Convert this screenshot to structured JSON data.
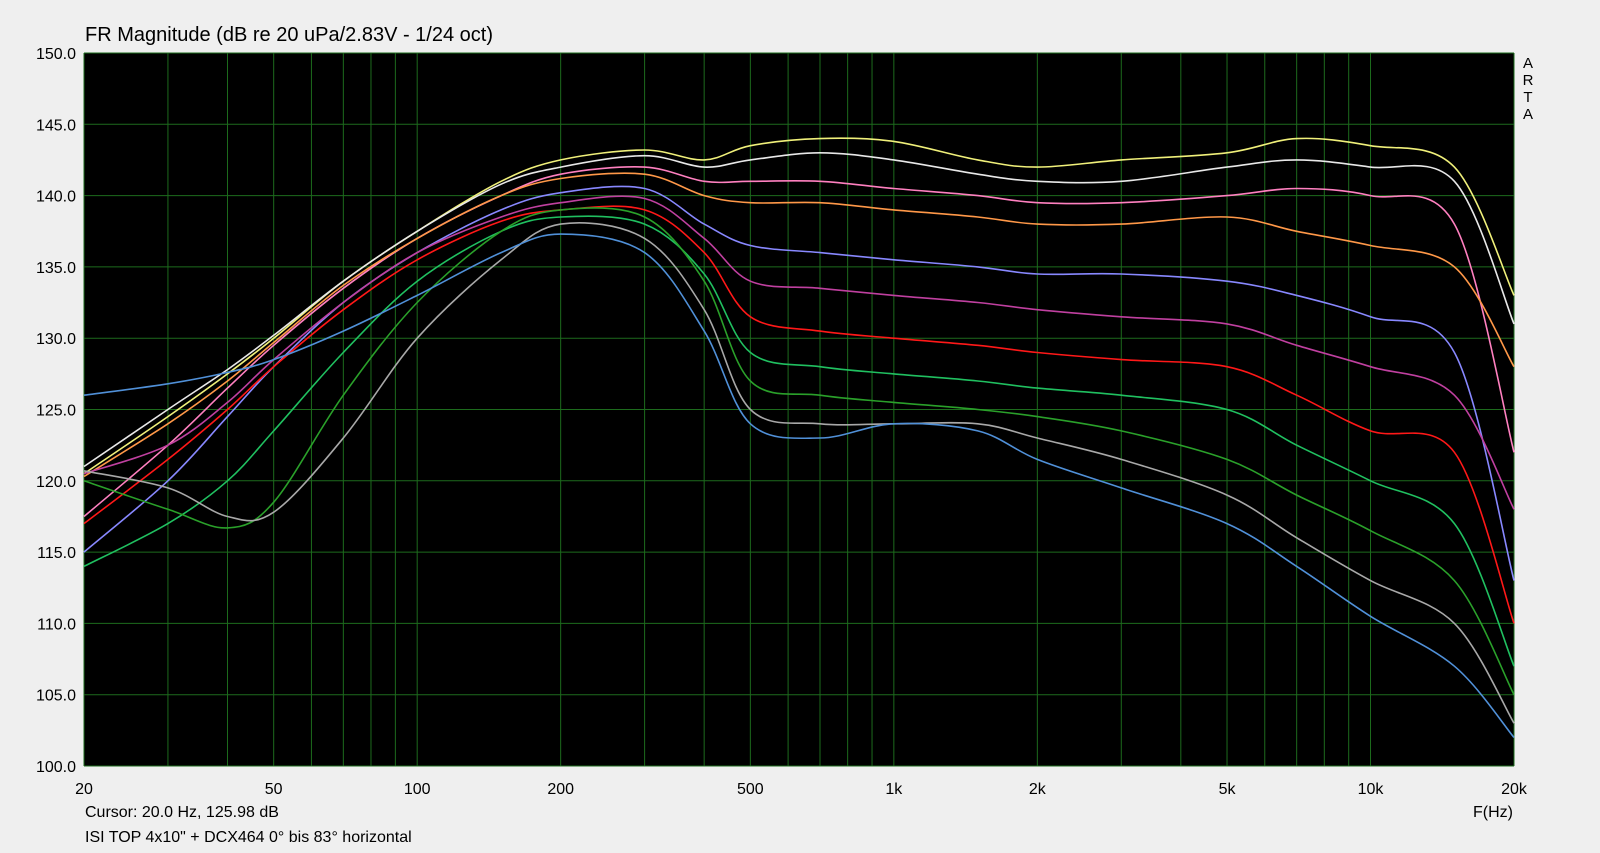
{
  "chart_title": "FR Magnitude (dB re 20 uPa/2.83V - 1/24 oct)",
  "cursor_readout": "Cursor: 20.0 Hz, 125.98 dB",
  "caption": "ISI TOP 4x10\" + DCX464 0° bis 83° horizontal",
  "brand_letters": [
    "A",
    "R",
    "T",
    "A"
  ],
  "colors": {
    "plot_background": "#000000",
    "grid": "#1d6b1d",
    "frame": "#efefef"
  },
  "chart_data": {
    "type": "line",
    "title": "FR Magnitude (dB re 20 uPa/2.83V - 1/24 oct)",
    "xlabel": "F(Hz)",
    "ylabel": "",
    "x_scale": "log",
    "xlim": [
      20,
      20000
    ],
    "ylim": [
      100,
      150
    ],
    "grid": true,
    "x_tick_values": [
      20,
      50,
      100,
      200,
      500,
      1000,
      2000,
      5000,
      10000,
      20000
    ],
    "x_tick_labels": [
      "20",
      "50",
      "100",
      "200",
      "500",
      "1k",
      "2k",
      "5k",
      "10k",
      "20k"
    ],
    "y_tick_values": [
      100,
      105,
      110,
      115,
      120,
      125,
      130,
      135,
      140,
      145,
      150
    ],
    "y_tick_labels": [
      "100.0",
      "105.0",
      "110.0",
      "115.0",
      "120.0",
      "125.0",
      "130.0",
      "135.0",
      "140.0",
      "145.0",
      "150.0"
    ],
    "x": [
      20,
      30,
      40,
      50,
      70,
      100,
      150,
      200,
      300,
      400,
      500,
      700,
      1000,
      1500,
      2000,
      3000,
      5000,
      7000,
      10000,
      15000,
      20000
    ],
    "series": [
      {
        "color": "#f0f07a",
        "values": [
          120.5,
          124.5,
          127.5,
          130.0,
          134.0,
          137.5,
          141.0,
          142.5,
          143.2,
          142.5,
          143.5,
          144.0,
          143.8,
          142.5,
          142.0,
          142.5,
          143.0,
          144.0,
          143.5,
          142.0,
          133.0
        ]
      },
      {
        "color": "#e8e8e8",
        "values": [
          121.0,
          125.0,
          127.8,
          130.2,
          134.0,
          137.5,
          140.8,
          142.0,
          142.8,
          142.0,
          142.5,
          143.0,
          142.5,
          141.5,
          141.0,
          141.0,
          142.0,
          142.5,
          142.0,
          141.0,
          131.0
        ]
      },
      {
        "color": "#ff80c0",
        "values": [
          117.5,
          122.5,
          126.5,
          129.5,
          133.5,
          137.0,
          140.0,
          141.5,
          142.0,
          141.0,
          141.0,
          141.0,
          140.5,
          140.0,
          139.5,
          139.5,
          140.0,
          140.5,
          140.0,
          138.0,
          122.0
        ]
      },
      {
        "color": "#ff9848",
        "values": [
          120.3,
          124.0,
          127.0,
          129.7,
          133.7,
          137.0,
          140.0,
          141.2,
          141.5,
          140.0,
          139.5,
          139.5,
          139.0,
          138.5,
          138.0,
          138.0,
          138.5,
          137.5,
          136.5,
          135.0,
          128.0
        ]
      },
      {
        "color": "#8888ff",
        "values": [
          115.0,
          120.0,
          124.5,
          128.0,
          132.5,
          136.0,
          139.0,
          140.2,
          140.5,
          138.0,
          136.5,
          136.0,
          135.5,
          135.0,
          134.5,
          134.5,
          134.0,
          133.0,
          131.5,
          129.0,
          113.0
        ]
      },
      {
        "color": "#c040a0",
        "values": [
          120.5,
          122.5,
          125.5,
          128.5,
          132.5,
          136.0,
          138.5,
          139.5,
          139.8,
          137.0,
          134.0,
          133.5,
          133.0,
          132.5,
          132.0,
          131.5,
          131.0,
          129.5,
          128.0,
          126.0,
          118.0
        ]
      },
      {
        "color": "#ff1818",
        "values": [
          117.0,
          121.5,
          125.0,
          128.0,
          132.0,
          135.5,
          138.2,
          139.0,
          139.0,
          136.0,
          131.5,
          130.5,
          130.0,
          129.5,
          129.0,
          128.5,
          128.0,
          126.0,
          123.5,
          122.0,
          110.0
        ]
      },
      {
        "color": "#20c060",
        "values": [
          114.0,
          117.0,
          120.0,
          123.5,
          129.0,
          134.0,
          137.5,
          138.5,
          138.0,
          134.5,
          129.0,
          128.0,
          127.5,
          127.0,
          126.5,
          126.0,
          125.0,
          122.5,
          120.0,
          117.0,
          107.0
        ]
      },
      {
        "color": "#2aa02a",
        "values": [
          120.0,
          118.0,
          116.7,
          118.5,
          126.0,
          132.5,
          137.5,
          139.0,
          138.5,
          134.0,
          127.0,
          126.0,
          125.5,
          125.0,
          124.5,
          123.5,
          121.5,
          119.0,
          116.5,
          113.0,
          105.0
        ]
      },
      {
        "color": "#a8a8a8",
        "values": [
          120.7,
          119.5,
          117.5,
          117.8,
          123.0,
          130.0,
          135.5,
          138.0,
          137.0,
          132.0,
          125.0,
          124.0,
          124.0,
          124.0,
          123.0,
          121.5,
          119.0,
          116.0,
          113.0,
          110.0,
          103.0
        ]
      },
      {
        "color": "#5090d8",
        "values": [
          126.0,
          126.8,
          127.6,
          128.5,
          130.5,
          133.0,
          136.0,
          137.3,
          136.0,
          130.5,
          124.0,
          123.0,
          124.0,
          123.5,
          121.5,
          119.5,
          117.0,
          114.0,
          110.5,
          107.0,
          102.0
        ]
      }
    ]
  }
}
